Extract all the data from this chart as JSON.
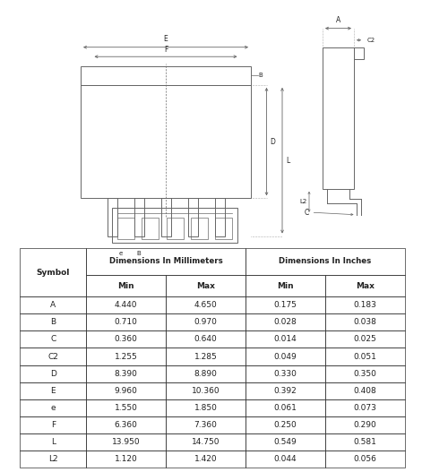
{
  "table_rows": [
    [
      "A",
      "4.440",
      "4.650",
      "0.175",
      "0.183"
    ],
    [
      "B",
      "0.710",
      "0.970",
      "0.028",
      "0.038"
    ],
    [
      "C",
      "0.360",
      "0.640",
      "0.014",
      "0.025"
    ],
    [
      "C2",
      "1.255",
      "1.285",
      "0.049",
      "0.051"
    ],
    [
      "D",
      "8.390",
      "8.890",
      "0.330",
      "0.350"
    ],
    [
      "E",
      "9.960",
      "10.360",
      "0.392",
      "0.408"
    ],
    [
      "e",
      "1.550",
      "1.850",
      "0.061",
      "0.073"
    ],
    [
      "F",
      "6.360",
      "7.360",
      "0.250",
      "0.290"
    ],
    [
      "L",
      "13.950",
      "14.750",
      "0.549",
      "0.581"
    ],
    [
      "L2",
      "1.120",
      "1.420",
      "0.044",
      "0.056"
    ]
  ],
  "bg_color": "#ffffff",
  "line_color": "#666666",
  "text_color": "#222222",
  "fig_width": 5.0,
  "fig_height": 5.27,
  "dpi": 100
}
